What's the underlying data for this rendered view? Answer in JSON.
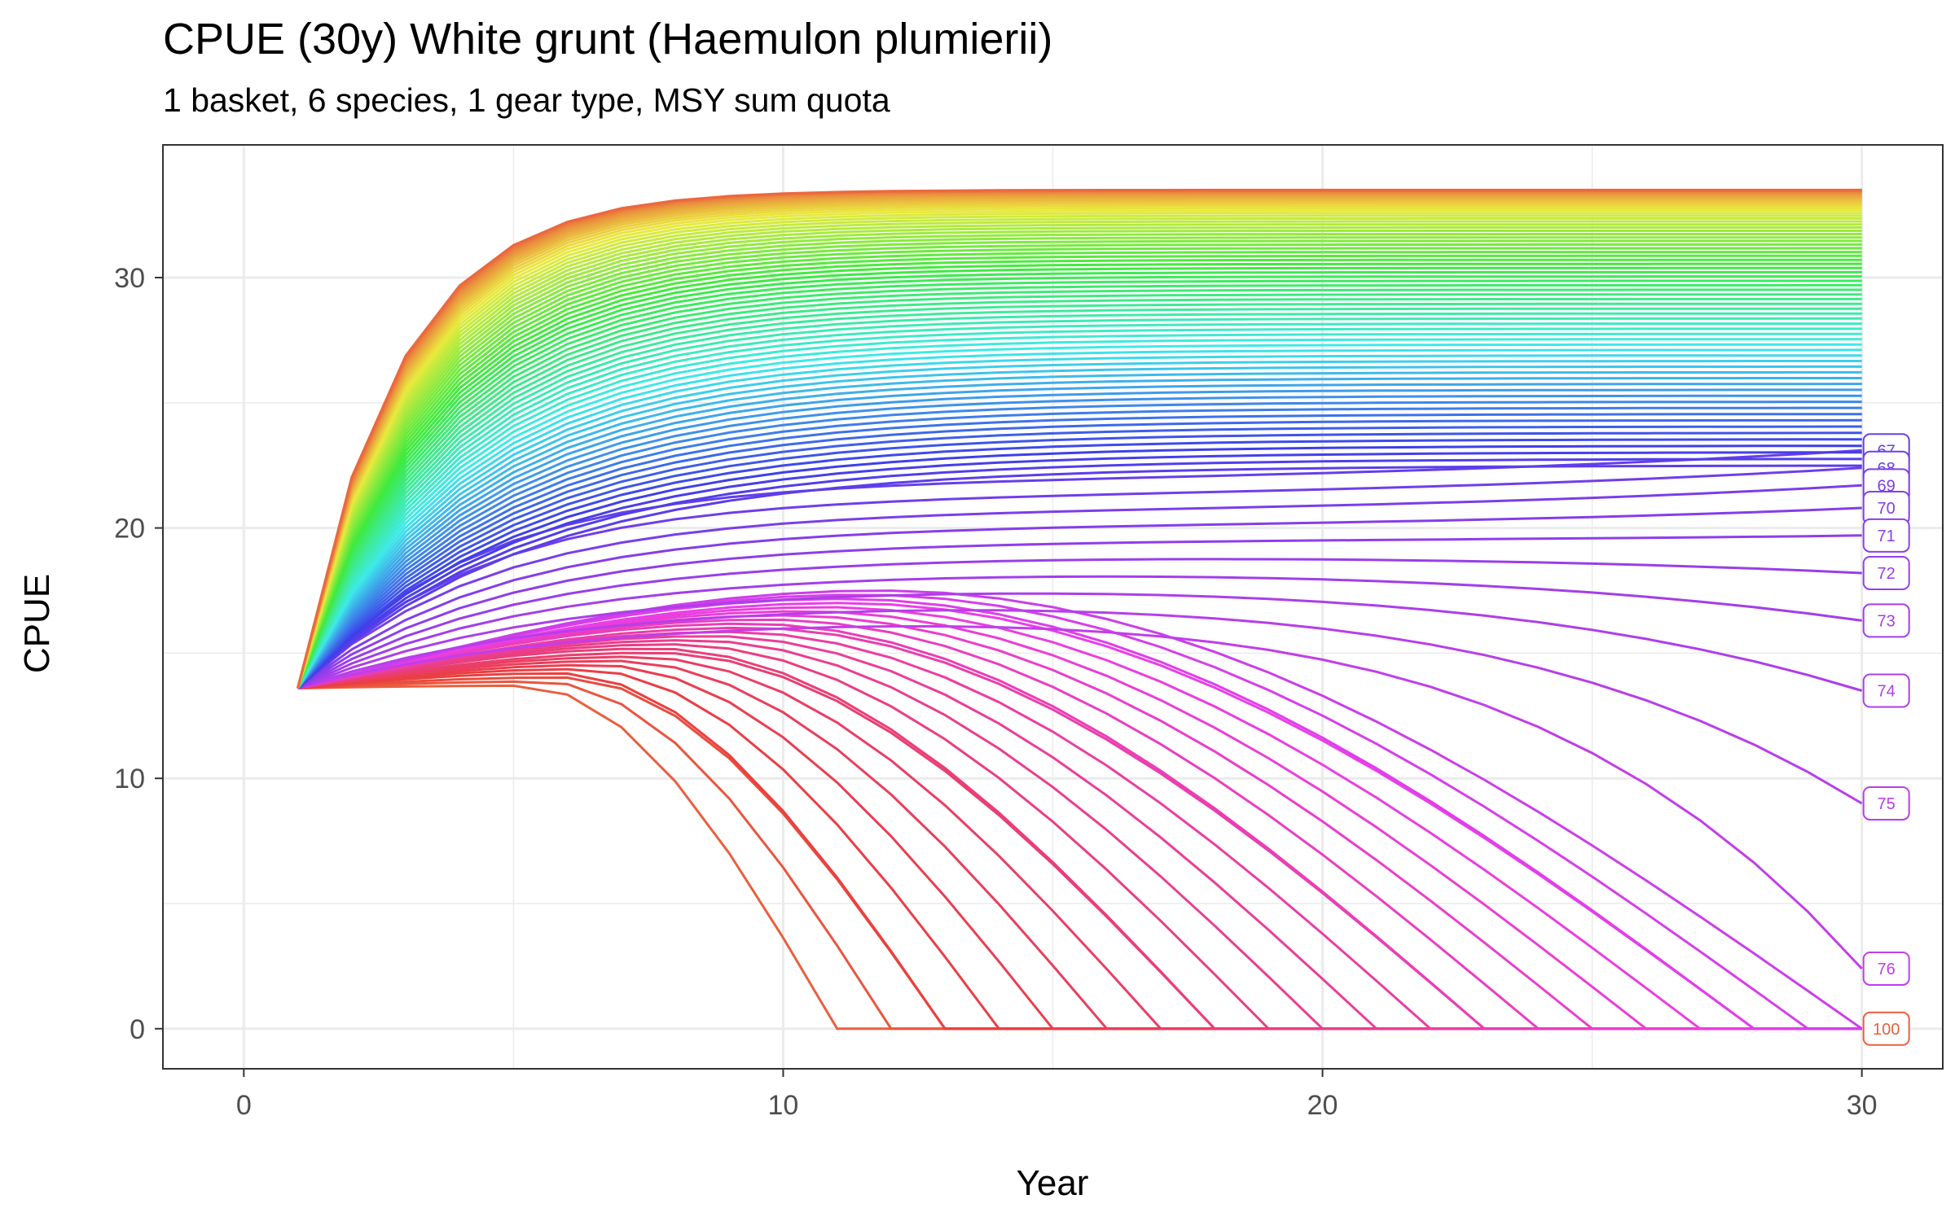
{
  "chart_data": {
    "type": "line",
    "title": "CPUE (30y) White grunt (Haemulon plumierii)",
    "subtitle": "1 basket, 6 species, 1 gear type, MSY sum quota",
    "xlabel": "Year",
    "ylabel": "CPUE",
    "xlim": [
      -1.5,
      31.5
    ],
    "ylim": [
      -1.6,
      35.3
    ],
    "x_ticks": [
      0,
      10,
      20,
      30
    ],
    "y_ticks": [
      0,
      10,
      20,
      30
    ],
    "grid": true,
    "legend": "none",
    "line_count": 101,
    "series_note_source": "end labels printed at year 30",
    "start": {
      "x": 1,
      "y": 13.6
    },
    "end_labels": [
      {
        "label": "67",
        "y": 23.1
      },
      {
        "label": "68",
        "y": 22.4
      },
      {
        "label": "69",
        "y": 21.7
      },
      {
        "label": "70",
        "y": 20.8
      },
      {
        "label": "71",
        "y": 19.7
      },
      {
        "label": "72",
        "y": 18.2
      },
      {
        "label": "73",
        "y": 16.3
      },
      {
        "label": "74",
        "y": 13.5
      },
      {
        "label": "75",
        "y": 9.0
      },
      {
        "label": "76",
        "y": 2.4
      },
      {
        "label": "100",
        "y": 0.0
      }
    ],
    "plateau_top": 33.5,
    "collapse_first_year": 11,
    "colors": {
      "low_quota": "#f8766d",
      "mid_green": "#00ba38",
      "mid_blue": "#00a9ff",
      "high_pink": "#ff61c3",
      "grid": "#ebebeb",
      "axis": "#333333"
    }
  }
}
